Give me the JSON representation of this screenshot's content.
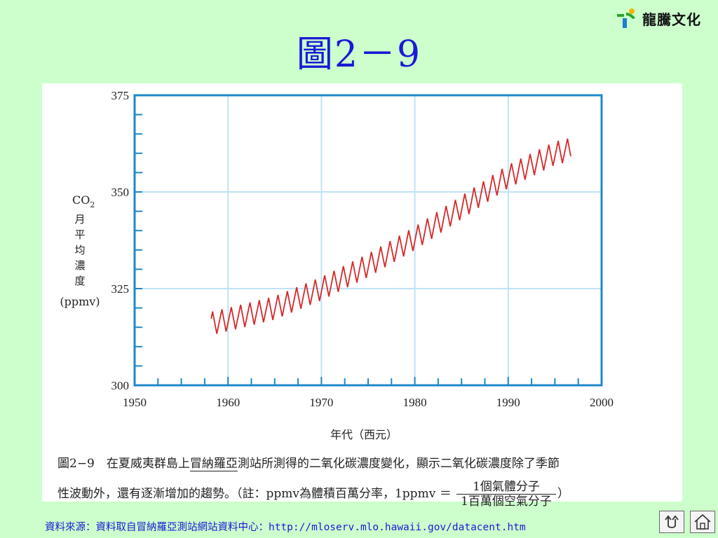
{
  "logo": {
    "text": "龍騰文化"
  },
  "slide_title": "圖2－9",
  "chart_data": {
    "type": "line",
    "x_ticks": [
      "1950",
      "1960",
      "1970",
      "1980",
      "1990",
      "2000"
    ],
    "y_ticks": [
      "300",
      "325",
      "350",
      "375"
    ],
    "xlim": [
      1950,
      2000
    ],
    "ylim": [
      300,
      375
    ],
    "ylabel_lines": [
      "月",
      "平",
      "均",
      "濃",
      "度",
      "(ppmv)"
    ],
    "ylabel_main": "CO",
    "ylabel_sub": "2",
    "xlabel": "年代（西元）",
    "grid": true,
    "color": "#d42a2a",
    "seasonal_amplitude_ppmv": 3,
    "trend": {
      "x": [
        1958.2,
        1960,
        1965,
        1970,
        1975,
        1980,
        1985,
        1990,
        1995,
        1996.7
      ],
      "y": [
        316,
        317,
        320,
        325,
        331,
        338,
        346,
        354,
        360,
        361
      ]
    }
  },
  "caption": {
    "line1_prefix": "圖2−9　在夏威夷群島上",
    "line1_underlined": "冒納羅亞",
    "line1_suffix": "測站所測得的二氧化碳濃度變化，顯示二氧化碳濃度除了季節",
    "line2_prefix": "性波動外，還有逐漸增加的趨勢。（註：ppmv為體積百萬分率，1ppmv ＝",
    "frac_num": "1個氣體分子",
    "frac_den": "1百萬個空氣分子",
    "line2_suffix": "）"
  },
  "source": "資料來源：資料取自冒納羅亞測站網站資料中心：http://mloserv.mlo.hawaii.gov/datacent.htm",
  "nav": {
    "back_icon": "return-icon",
    "home_icon": "home-icon"
  }
}
